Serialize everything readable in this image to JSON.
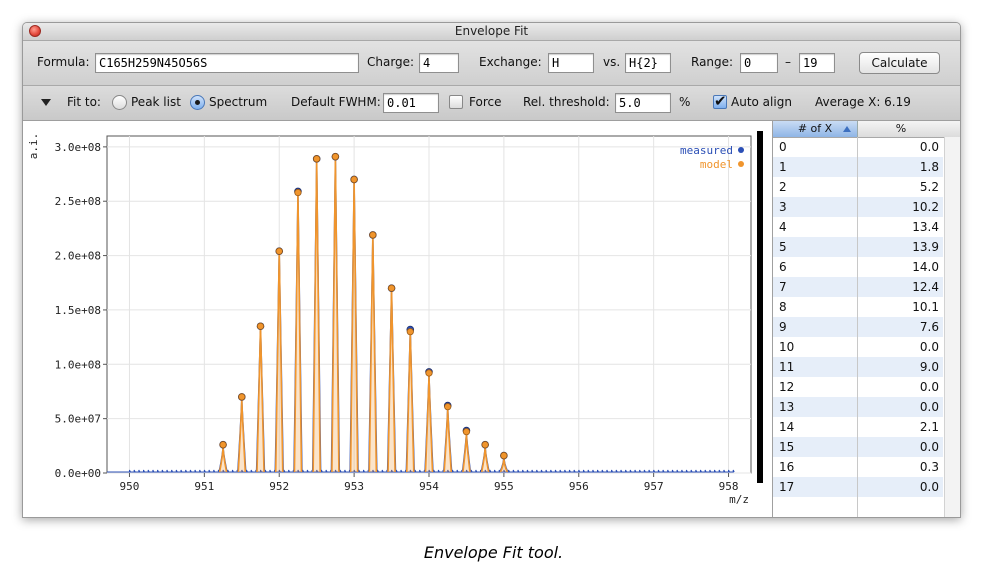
{
  "window": {
    "title": "Envelope Fit"
  },
  "toolbar": {
    "formula_label": "Formula:",
    "formula_value": "C165H259N45O56S",
    "charge_label": "Charge:",
    "charge_value": "4",
    "exchange_label": "Exchange:",
    "exchange_value": "H",
    "vs_label": "vs.",
    "vs_value": "H{2}",
    "range_label": "Range:",
    "range_min": "0",
    "range_dash": "–",
    "range_max": "19",
    "calculate_label": "Calculate"
  },
  "options": {
    "fit_to_label": "Fit to:",
    "peak_list_label": "Peak list",
    "spectrum_label": "Spectrum",
    "fit_to_selected": "Spectrum",
    "fwhm_label": "Default FWHM:",
    "fwhm_value": "0.01",
    "force_label": "Force",
    "force_checked": false,
    "rel_threshold_label": "Rel. threshold:",
    "rel_threshold_value": "5.0",
    "percent_label": "%",
    "auto_align_label": "Auto align",
    "auto_align_checked": true,
    "average_x": "Average X: 6.19"
  },
  "chart_data": {
    "type": "line",
    "title": "",
    "xlabel": "m/z",
    "ylabel": "a.i.",
    "xlim": [
      949.7,
      958.3
    ],
    "ylim": [
      0,
      310000000
    ],
    "x_ticks": [
      950,
      951,
      952,
      953,
      954,
      955,
      956,
      957,
      958
    ],
    "y_ticks": [
      "0.0e+00",
      "5.0e+07",
      "1.0e+08",
      "1.5e+08",
      "2.0e+08",
      "2.5e+08",
      "3.0e+08"
    ],
    "y_tick_values": [
      0,
      50000000,
      100000000,
      150000000,
      200000000,
      250000000,
      300000000
    ],
    "grid": true,
    "legend_position": "top-right",
    "colors": {
      "measured": "#2b4fb6",
      "model": "#f0952d"
    },
    "series": [
      {
        "name": "measured",
        "x": [
          951.25,
          951.5,
          951.75,
          952.0,
          952.25,
          952.5,
          952.75,
          953.0,
          953.25,
          953.5,
          953.75,
          954.0,
          954.25,
          954.5,
          954.75,
          955.0
        ],
        "values": [
          26000000,
          70000000,
          135000000,
          204000000,
          259000000,
          289000000,
          291000000,
          270000000,
          219000000,
          170000000,
          132000000,
          93000000,
          62000000,
          39000000,
          26000000,
          16000000
        ]
      },
      {
        "name": "model",
        "x": [
          951.25,
          951.5,
          951.75,
          952.0,
          952.25,
          952.5,
          952.75,
          953.0,
          953.25,
          953.5,
          953.75,
          954.0,
          954.25,
          954.5,
          954.75,
          955.0
        ],
        "values": [
          26000000,
          70000000,
          135000000,
          204000000,
          258000000,
          289000000,
          291000000,
          270000000,
          219000000,
          170000000,
          130000000,
          92000000,
          61000000,
          38000000,
          26000000,
          16000000
        ]
      }
    ]
  },
  "table": {
    "headers": [
      "# of X",
      "%"
    ],
    "rows": [
      {
        "x": "0",
        "pct": "0.0"
      },
      {
        "x": "1",
        "pct": "1.8"
      },
      {
        "x": "2",
        "pct": "5.2"
      },
      {
        "x": "3",
        "pct": "10.2"
      },
      {
        "x": "4",
        "pct": "13.4"
      },
      {
        "x": "5",
        "pct": "13.9"
      },
      {
        "x": "6",
        "pct": "14.0"
      },
      {
        "x": "7",
        "pct": "12.4"
      },
      {
        "x": "8",
        "pct": "10.1"
      },
      {
        "x": "9",
        "pct": "7.6"
      },
      {
        "x": "10",
        "pct": "0.0"
      },
      {
        "x": "11",
        "pct": "9.0"
      },
      {
        "x": "12",
        "pct": "0.0"
      },
      {
        "x": "13",
        "pct": "0.0"
      },
      {
        "x": "14",
        "pct": "2.1"
      },
      {
        "x": "15",
        "pct": "0.0"
      },
      {
        "x": "16",
        "pct": "0.3"
      },
      {
        "x": "17",
        "pct": "0.0"
      }
    ]
  },
  "caption": "Envelope Fit tool."
}
